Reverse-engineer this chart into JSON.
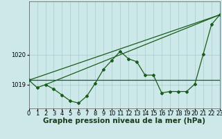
{
  "background_color": "#cce8e8",
  "grid_color": "#a8cccc",
  "line_color": "#1a5c1a",
  "xlabel": "Graphe pression niveau de la mer (hPa)",
  "xlabel_fontsize": 7.5,
  "xlim": [
    0,
    23
  ],
  "ylim": [
    1018.2,
    1021.8
  ],
  "yticks": [
    1019,
    1020
  ],
  "xticks": [
    0,
    1,
    2,
    3,
    4,
    5,
    6,
    7,
    8,
    9,
    10,
    11,
    12,
    13,
    14,
    15,
    16,
    17,
    18,
    19,
    20,
    21,
    22,
    23
  ],
  "series1_x": [
    0,
    1,
    2,
    3,
    4,
    5,
    6,
    7,
    8,
    9,
    10,
    11,
    12,
    13,
    14,
    15,
    16,
    17,
    18,
    19,
    20,
    21,
    22,
    23
  ],
  "series1_y": [
    1019.15,
    1018.9,
    1019.0,
    1018.85,
    1018.65,
    1018.45,
    1018.38,
    1018.62,
    1019.05,
    1019.52,
    1019.82,
    1020.12,
    1019.87,
    1019.77,
    1019.32,
    1019.32,
    1018.72,
    1018.77,
    1018.77,
    1018.77,
    1019.02,
    1020.02,
    1021.02,
    1021.35
  ],
  "series2_x": [
    0,
    23
  ],
  "series2_y": [
    1019.15,
    1021.35
  ],
  "series3_x": [
    0,
    23
  ],
  "series3_y": [
    1019.15,
    1019.15
  ],
  "series4_x": [
    2,
    23
  ],
  "series4_y": [
    1019.0,
    1021.35
  ],
  "tick_fontsize": 6,
  "markersize": 2.0
}
